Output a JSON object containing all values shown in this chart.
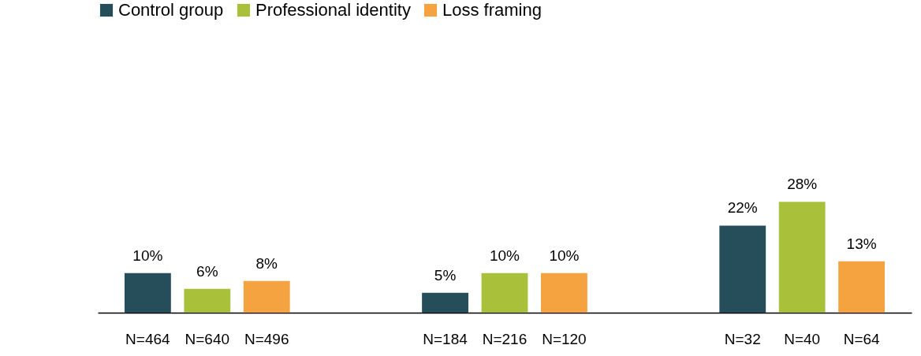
{
  "chart_data": {
    "type": "bar",
    "categories": [
      "N=464",
      "N=640",
      "N=496",
      null,
      null,
      "N=184",
      "N=216",
      "N=120",
      null,
      null,
      "N=32",
      "N=40",
      "N=64"
    ],
    "series": [
      {
        "name": "Control group",
        "color": "#264d5a",
        "values": [
          10,
          null,
          null,
          null,
          null,
          5,
          null,
          null,
          null,
          null,
          22,
          null,
          null
        ],
        "value_labels": [
          "10%",
          null,
          null,
          null,
          null,
          "5%",
          null,
          null,
          null,
          null,
          "22%",
          null,
          null
        ]
      },
      {
        "name": "Professional identity",
        "color": "#a8c03a",
        "values": [
          null,
          6,
          null,
          null,
          null,
          null,
          10,
          null,
          null,
          null,
          null,
          28,
          null
        ],
        "value_labels": [
          null,
          "6%",
          null,
          null,
          null,
          null,
          "10%",
          null,
          null,
          null,
          null,
          "28%",
          null
        ]
      },
      {
        "name": "Loss framing",
        "color": "#f4a340",
        "values": [
          null,
          null,
          8,
          null,
          null,
          null,
          null,
          10,
          null,
          null,
          null,
          null,
          13
        ],
        "value_labels": [
          null,
          null,
          "8%",
          null,
          null,
          null,
          null,
          "10%",
          null,
          null,
          null,
          null,
          "13%"
        ]
      }
    ],
    "legend": "top left",
    "tick_labels": "x"
  }
}
